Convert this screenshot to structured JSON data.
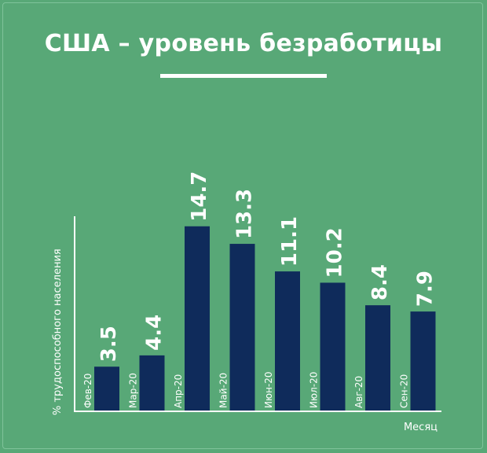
{
  "chart_data": {
    "type": "bar",
    "title": "США – уровень безработицы",
    "xlabel": "Месяц",
    "ylabel": "% трудоспособного населения",
    "categories": [
      "Фев-20",
      "Мар-20",
      "Апр-20",
      "Май-20",
      "Июн-20",
      "Июл-20",
      "Авг-20",
      "Сен-20"
    ],
    "values": [
      3.5,
      4.4,
      14.7,
      13.3,
      11.1,
      10.2,
      8.4,
      7.9
    ],
    "value_labels": [
      "3.5",
      "4.4",
      "14.7",
      "13.3",
      "11.1",
      "10.2",
      "8.4",
      "7.9"
    ],
    "ylim": [
      0,
      15.5
    ],
    "grid": false,
    "legend": "none",
    "colors": {
      "background": "#58a877",
      "bar": "#0f2b5b",
      "text": "#ffffff",
      "axis": "#ffffff"
    }
  }
}
